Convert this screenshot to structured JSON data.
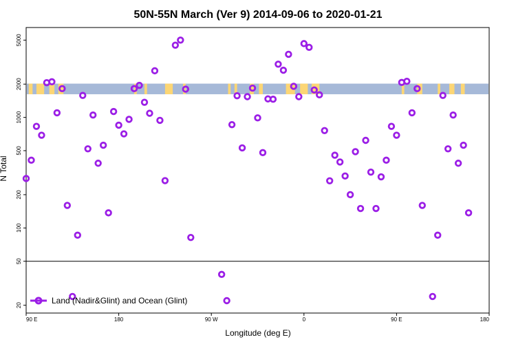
{
  "chart_data": {
    "type": "scatter",
    "title": "50N-55N March (Ver 9)   2014-09-06 to 2020-01-21",
    "xlabel": "Longitude (deg E)",
    "ylabel": "N Total",
    "xlim": [
      -180,
      180
    ],
    "ylim": [
      17,
      6500
    ],
    "yscale": "log",
    "x_ticks": [
      {
        "value": -180,
        "label": "90 E"
      },
      {
        "value": -108,
        "label": "180"
      },
      {
        "value": -36,
        "label": "90 W"
      },
      {
        "value": 36,
        "label": "0"
      },
      {
        "value": 108,
        "label": "90 E"
      },
      {
        "value": 180,
        "label": "180"
      }
    ],
    "y_ticks": [
      {
        "value": 20,
        "label": "20"
      },
      {
        "value": 50,
        "label": "50"
      },
      {
        "value": 100,
        "label": "100"
      },
      {
        "value": 200,
        "label": "200"
      },
      {
        "value": 500,
        "label": "500"
      },
      {
        "value": 1000,
        "label": "1000"
      },
      {
        "value": 2000,
        "label": "2000"
      },
      {
        "value": 5000,
        "label": "5000"
      }
    ],
    "reference_line": 50,
    "surface_band": {
      "y_range": [
        1620,
        2020
      ],
      "land_color": "#fcd675",
      "ocean_color": "#a6b9d8",
      "land_segments": [
        [
          -178,
          -175
        ],
        [
          -172,
          -166
        ],
        [
          -162,
          -158
        ],
        [
          -155,
          -151
        ],
        [
          -96,
          -94
        ],
        [
          -88,
          -86
        ],
        [
          -72,
          -66
        ],
        [
          -58,
          -56
        ],
        [
          -23,
          -21
        ],
        [
          -18,
          -16
        ],
        [
          -6,
          -3
        ],
        [
          1,
          4
        ],
        [
          22,
          29
        ],
        [
          33,
          39
        ],
        [
          42,
          48
        ],
        [
          112,
          114
        ],
        [
          124,
          128
        ],
        [
          140,
          142
        ],
        [
          149,
          153
        ],
        [
          158,
          161
        ]
      ]
    },
    "marker_color": "#9b1ee6",
    "legend": {
      "position": "bottom-left",
      "label": "Land (Nadir&Glint) and Ocean (Glint)"
    },
    "series": [
      {
        "name": "Land (Nadir&Glint) and Ocean (Glint)",
        "points": [
          {
            "x": -180,
            "y": 280
          },
          {
            "x": -176,
            "y": 410
          },
          {
            "x": -172,
            "y": 830
          },
          {
            "x": -168,
            "y": 690
          },
          {
            "x": -164,
            "y": 2060
          },
          {
            "x": -160,
            "y": 2100
          },
          {
            "x": -156,
            "y": 1100
          },
          {
            "x": -152,
            "y": 1820
          },
          {
            "x": -148,
            "y": 160
          },
          {
            "x": -144,
            "y": 24
          },
          {
            "x": -140,
            "y": 86
          },
          {
            "x": -136,
            "y": 1580
          },
          {
            "x": -132,
            "y": 520
          },
          {
            "x": -128,
            "y": 1050
          },
          {
            "x": -124,
            "y": 385
          },
          {
            "x": -120,
            "y": 560
          },
          {
            "x": -116,
            "y": 137
          },
          {
            "x": -112,
            "y": 1130
          },
          {
            "x": -108,
            "y": 850
          },
          {
            "x": -104,
            "y": 710
          },
          {
            "x": -100,
            "y": 960
          },
          {
            "x": -96,
            "y": 1820
          },
          {
            "x": -92,
            "y": 1950
          },
          {
            "x": -88,
            "y": 1370
          },
          {
            "x": -84,
            "y": 1090
          },
          {
            "x": -80,
            "y": 2640
          },
          {
            "x": -76,
            "y": 940
          },
          {
            "x": -72,
            "y": 268
          },
          {
            "x": -64,
            "y": 4500
          },
          {
            "x": -60,
            "y": 5000
          },
          {
            "x": -56,
            "y": 1800
          },
          {
            "x": -52,
            "y": 82
          },
          {
            "x": -28,
            "y": 38
          },
          {
            "x": -24,
            "y": 22
          },
          {
            "x": -20,
            "y": 860
          },
          {
            "x": -16,
            "y": 1570
          },
          {
            "x": -12,
            "y": 530
          },
          {
            "x": -8,
            "y": 1540
          },
          {
            "x": -4,
            "y": 1840
          },
          {
            "x": 0,
            "y": 990
          },
          {
            "x": 4,
            "y": 480
          },
          {
            "x": 8,
            "y": 1470
          },
          {
            "x": 12,
            "y": 1460
          },
          {
            "x": 16,
            "y": 3030
          },
          {
            "x": 20,
            "y": 2670
          },
          {
            "x": 24,
            "y": 3720
          },
          {
            "x": 28,
            "y": 1910
          },
          {
            "x": 32,
            "y": 1540
          },
          {
            "x": 36,
            "y": 4650
          },
          {
            "x": 40,
            "y": 4300
          },
          {
            "x": 44,
            "y": 1770
          },
          {
            "x": 48,
            "y": 1600
          },
          {
            "x": 52,
            "y": 760
          },
          {
            "x": 56,
            "y": 267
          },
          {
            "x": 60,
            "y": 455
          },
          {
            "x": 64,
            "y": 395
          },
          {
            "x": 68,
            "y": 295
          },
          {
            "x": 72,
            "y": 200
          },
          {
            "x": 76,
            "y": 490
          },
          {
            "x": 80,
            "y": 150
          },
          {
            "x": 84,
            "y": 620
          },
          {
            "x": 88,
            "y": 320
          },
          {
            "x": 92,
            "y": 150
          },
          {
            "x": 96,
            "y": 290
          },
          {
            "x": 100,
            "y": 410
          },
          {
            "x": 104,
            "y": 830
          },
          {
            "x": 108,
            "y": 690
          },
          {
            "x": 112,
            "y": 2070
          },
          {
            "x": 116,
            "y": 2120
          },
          {
            "x": 120,
            "y": 1100
          },
          {
            "x": 124,
            "y": 1820
          },
          {
            "x": 128,
            "y": 160
          },
          {
            "x": 136,
            "y": 24
          },
          {
            "x": 140,
            "y": 86
          },
          {
            "x": 144,
            "y": 1580
          },
          {
            "x": 148,
            "y": 520
          },
          {
            "x": 152,
            "y": 1050
          },
          {
            "x": 156,
            "y": 385
          },
          {
            "x": 160,
            "y": 560
          },
          {
            "x": 164,
            "y": 137
          }
        ]
      }
    ]
  }
}
